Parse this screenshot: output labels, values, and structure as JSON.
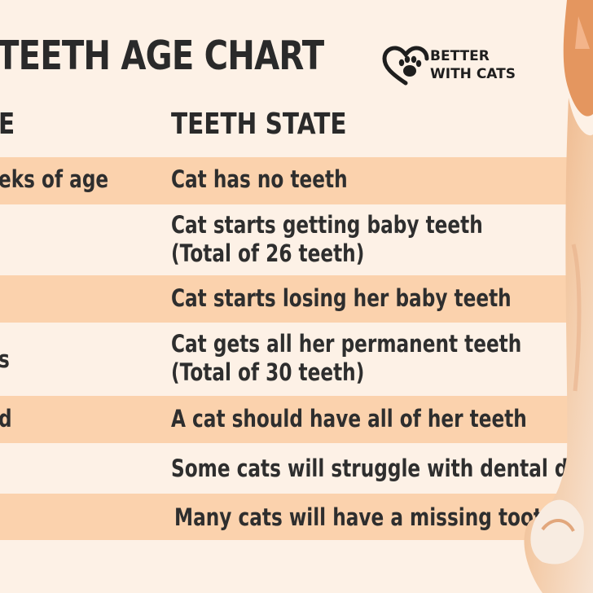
{
  "title": "TEETH AGE CHART",
  "logo": {
    "line1": "BETTER",
    "line2": "WITH CATS",
    "icon": "heart-paw-icon"
  },
  "columns": {
    "age": "E",
    "teeth": "TEETH STATE"
  },
  "rows": [
    {
      "age": "eks of age",
      "teeth": [
        "Cat has no teeth"
      ],
      "shaded": true
    },
    {
      "age": "",
      "teeth": [
        "Cat starts getting baby teeth",
        "(Total of 26 teeth)"
      ],
      "shaded": false
    },
    {
      "age": "",
      "teeth": [
        "Cat starts losing her baby teeth"
      ],
      "shaded": true
    },
    {
      "age": "s",
      "teeth": [
        "Cat gets all her permanent teeth",
        "(Total of 30 teeth)"
      ],
      "shaded": false
    },
    {
      "age": "d",
      "teeth": [
        "A cat should have all of her teeth"
      ],
      "shaded": true
    },
    {
      "age": "",
      "teeth": [
        "Some cats will struggle with dental disease"
      ],
      "shaded": false
    },
    {
      "age": "",
      "teeth": [
        "Many cats will have a missing tooth"
      ],
      "shaded": true
    }
  ],
  "colors": {
    "background": "#fdf1e6",
    "row_shade": "#fbd2ad",
    "text": "#2e2e2e"
  },
  "image": {
    "subject": "orange-white-kitten"
  }
}
